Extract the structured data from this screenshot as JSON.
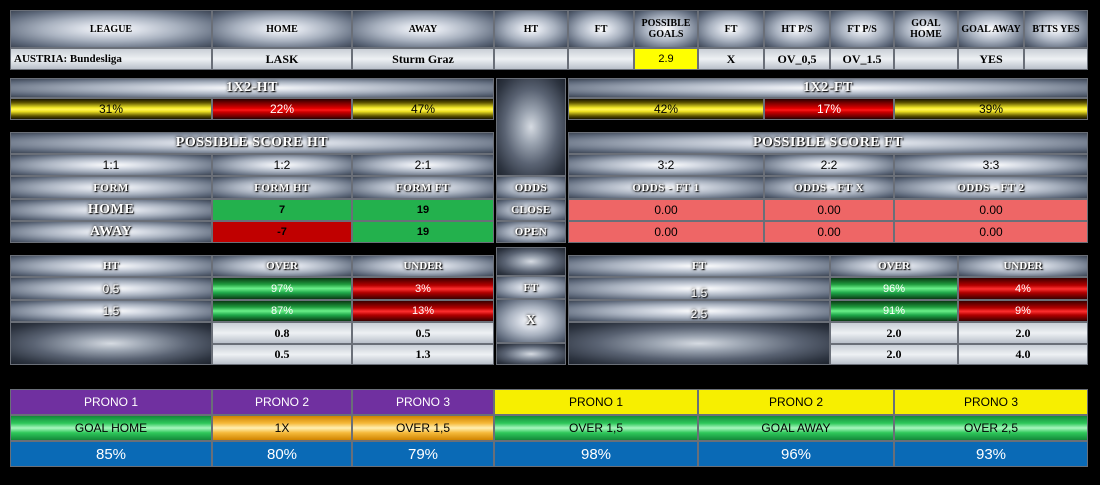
{
  "header": {
    "league": "LEAGUE",
    "home": "HOME",
    "away": "AWAY",
    "ht": "HT",
    "ft": "FT",
    "possible_goals": "POSSIBLE GOALS",
    "ft2": "FT",
    "ht_ps": "HT P/S",
    "ft_ps": "FT P/S",
    "goal_home": "GOAL HOME",
    "goal_away": "GOAL AWAY",
    "btts_yes": "BTTS YES"
  },
  "match": {
    "league": "AUSTRIA: Bundesliga",
    "home": "LASK",
    "away": "Sturm Graz",
    "ht": "",
    "ft": "",
    "possible_goals": "2.9",
    "ft2": "X",
    "ht_ps": "OV_0,5",
    "ft_ps": "OV_1.5",
    "goal_home": "",
    "goal_away": "YES",
    "btts_yes": ""
  },
  "x12_ht": {
    "title": "1X2-HT",
    "home": "31%",
    "draw": "22%",
    "away": "47%"
  },
  "x12_ft": {
    "title": "1X2-FT",
    "home": "42%",
    "draw": "17%",
    "away": "39%"
  },
  "score_ht": {
    "title": "POSSIBLE SCORE HT",
    "s1": "1:1",
    "s2": "1:2",
    "s3": "2:1"
  },
  "score_ft": {
    "title": "POSSIBLE SCORE FT",
    "s1": "3:2",
    "s2": "2:2",
    "s3": "3:3"
  },
  "form": {
    "label": "FORM",
    "form_ht": "FORM HT",
    "form_ft": "FORM FT",
    "home_label": "HOME",
    "away_label": "AWAY",
    "home_ht": "7",
    "home_ft": "19",
    "away_ht": "-7",
    "away_ft": "19"
  },
  "odds": {
    "label": "ODDS",
    "close": "CLOSE",
    "open": "OPEN",
    "ft1": "ODDS - FT 1",
    "ftx": "ODDS - FT X",
    "ft2": "ODDS - FT 2",
    "close_1": "0.00",
    "close_x": "0.00",
    "close_2": "0.00",
    "open_1": "0.00",
    "open_x": "0.00",
    "open_2": "0.00"
  },
  "ou_ht": {
    "h_ht": "HT",
    "h_over": "OVER",
    "h_under": "UNDER",
    "rows": [
      {
        "line": "0.5",
        "over": "97%",
        "under": "3%"
      },
      {
        "line": "1.5",
        "over": "87%",
        "under": "13%"
      }
    ],
    "extra": [
      {
        "over": "0.8",
        "under": "0.5"
      },
      {
        "over": "0.5",
        "under": "1.3"
      }
    ]
  },
  "mid": {
    "ft": "FT",
    "x": "X"
  },
  "ou_ft": {
    "h_ft": "FT",
    "h_over": "OVER",
    "h_under": "UNDER",
    "rows": [
      {
        "line": "1.5",
        "over": "96%",
        "under": "4%"
      },
      {
        "line": "2.5",
        "over": "91%",
        "under": "9%"
      }
    ],
    "extra": [
      {
        "over": "2.0",
        "under": "2.0"
      },
      {
        "over": "2.0",
        "under": "4.0"
      }
    ]
  },
  "prono_ht": {
    "headers": [
      "PRONO 1",
      "PRONO 2",
      "PRONO 3"
    ],
    "picks": [
      "GOAL HOME",
      "1X",
      "OVER 1,5"
    ],
    "pcts": [
      "85%",
      "80%",
      "79%"
    ]
  },
  "prono_ft": {
    "headers": [
      "PRONO 1",
      "PRONO 2",
      "PRONO 3"
    ],
    "picks": [
      "OVER 1,5",
      "GOAL AWAY",
      "OVER 2,5"
    ],
    "pcts": [
      "98%",
      "96%",
      "93%"
    ]
  },
  "colors": {
    "purple": "#7030a0",
    "yellow": "#f7ef00",
    "blue": "#0a6ab6",
    "green": "#23b14d",
    "red": "#c00000",
    "pink": "#ee6666"
  }
}
